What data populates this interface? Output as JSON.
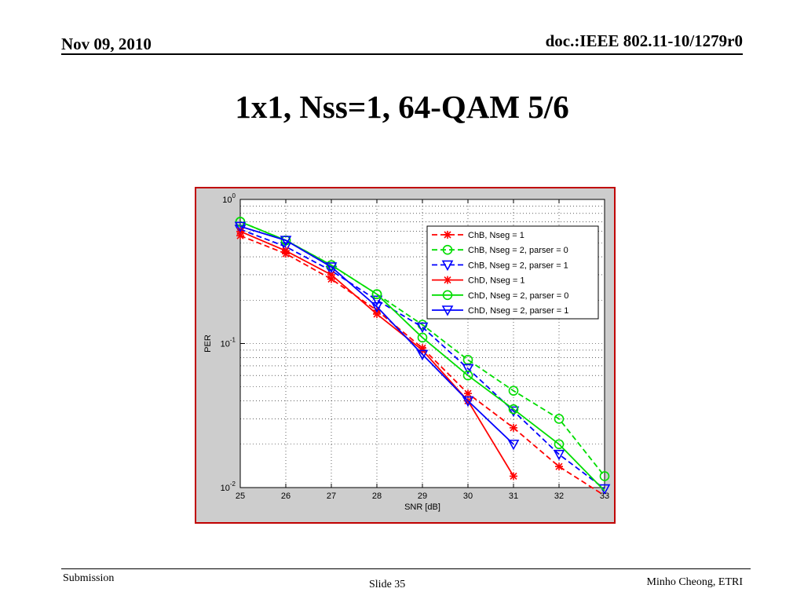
{
  "header": {
    "date": "Nov 09, 2010",
    "doc": "doc.:IEEE 802.11-10/1279r0"
  },
  "slide": {
    "title": "1x1, Nss=1, 64-QAM 5/6"
  },
  "footer": {
    "left": "Submission",
    "center": "Slide 35",
    "right": "Minho Cheong, ETRI"
  },
  "chart_data": {
    "type": "line",
    "xlabel": "SNR [dB]",
    "ylabel": "PER",
    "yscale": "log",
    "xlim": [
      25,
      33
    ],
    "ylim": [
      0.01,
      1
    ],
    "grid": true,
    "legend_position": "top-right",
    "x_ticks": [
      "25",
      "26",
      "27",
      "28",
      "29",
      "30",
      "31",
      "32",
      "33"
    ],
    "y_ticks": [
      {
        "base": "10",
        "exp": "0",
        "value": 1
      },
      {
        "base": "10",
        "exp": "-1",
        "value": 0.1
      },
      {
        "base": "10",
        "exp": "-2",
        "value": 0.01
      }
    ],
    "series": [
      {
        "name": "ChB, Nseg = 1",
        "color": "#ff0000",
        "marker": "star",
        "dashed": true,
        "x": [
          25,
          26,
          27,
          28,
          29,
          30,
          31,
          32,
          33
        ],
        "y": [
          0.56,
          0.42,
          0.28,
          0.17,
          0.093,
          0.045,
          0.026,
          0.014,
          0.0088
        ]
      },
      {
        "name": "ChB, Nseg = 2, parser = 0",
        "color": "#00dd00",
        "marker": "circle",
        "dashed": true,
        "x": [
          25,
          26,
          27,
          28,
          29,
          30,
          31,
          32,
          33
        ],
        "y": [
          0.7,
          0.52,
          0.35,
          0.22,
          0.135,
          0.077,
          0.047,
          0.03,
          0.012
        ]
      },
      {
        "name": "ChB, Nseg = 2, parser = 1",
        "color": "#0000ff",
        "marker": "triangle",
        "dashed": true,
        "x": [
          25,
          26,
          27,
          28,
          29,
          30,
          31,
          32,
          33
        ],
        "y": [
          0.62,
          0.47,
          0.32,
          0.2,
          0.13,
          0.067,
          0.034,
          0.017,
          0.0098
        ]
      },
      {
        "name": "ChD, Nseg = 1",
        "color": "#ff0000",
        "marker": "star",
        "dashed": false,
        "x": [
          25,
          26,
          27,
          28,
          29,
          30,
          31
        ],
        "y": [
          0.6,
          0.44,
          0.3,
          0.16,
          0.09,
          0.04,
          0.012
        ]
      },
      {
        "name": "ChD, Nseg = 2, parser = 0",
        "color": "#00dd00",
        "marker": "circle",
        "dashed": false,
        "x": [
          25,
          26,
          27,
          28,
          29,
          30,
          31,
          32,
          33
        ],
        "y": [
          0.7,
          0.52,
          0.35,
          0.22,
          0.11,
          0.06,
          0.035,
          0.02,
          0.0095
        ]
      },
      {
        "name": "ChD, Nseg = 2, parser = 1",
        "color": "#0000ff",
        "marker": "triangle",
        "dashed": false,
        "x": [
          25,
          26,
          27,
          28,
          29,
          30,
          31
        ],
        "y": [
          0.65,
          0.52,
          0.34,
          0.18,
          0.084,
          0.04,
          0.02
        ]
      }
    ]
  }
}
